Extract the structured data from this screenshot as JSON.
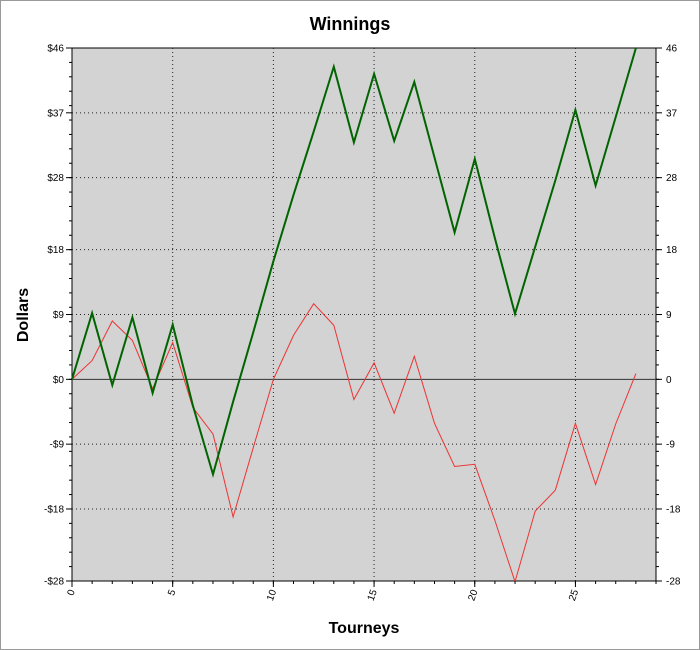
{
  "chart_data": {
    "type": "line",
    "title": "Winnings",
    "xlabel": "Tourneys",
    "ylabel": "Dollars",
    "x": [
      0,
      1,
      2,
      3,
      4,
      5,
      6,
      7,
      8,
      9,
      10,
      11,
      12,
      13,
      14,
      15,
      16,
      17,
      18,
      19,
      20,
      21,
      22,
      23,
      24,
      25,
      26,
      27,
      28
    ],
    "series": [
      {
        "color": "#006400",
        "values": [
          0,
          9.2,
          -0.8,
          8.6,
          -1.9,
          7.6,
          -3.6,
          -13.2,
          -3.1,
          6.5,
          16.4,
          25.6,
          34.4,
          43.4,
          32.9,
          42.4,
          33.1,
          41.3,
          30.8,
          20.4,
          30.6,
          19.6,
          9.1,
          18.4,
          27.6,
          37.4,
          26.9,
          36.4,
          46
        ]
      },
      {
        "color": "#ee3333",
        "values": [
          0,
          2.6,
          8.1,
          5.4,
          -1.3,
          5.1,
          -3.9,
          -7.6,
          -19.1,
          -9.5,
          0,
          6.1,
          10.5,
          7.5,
          -2.8,
          2.3,
          -4.7,
          3.2,
          -6.1,
          -12.1,
          -11.8,
          -19.6,
          -28.1,
          -18.3,
          -15.4,
          -6.1,
          -14.6,
          -6.2,
          0.8
        ]
      }
    ],
    "xlim": [
      0,
      29
    ],
    "ylim": [
      -28,
      46
    ],
    "x_ticks": [
      0,
      5,
      10,
      15,
      20,
      25
    ],
    "x_tick_labels": [
      "0",
      "5",
      "10",
      "15",
      "20",
      "25"
    ],
    "y_ticks": [
      -28,
      -18,
      -9,
      0,
      9,
      18,
      28,
      37,
      46
    ],
    "y_tick_labels_left": [
      "-$28",
      "-$18",
      "-$9",
      "$0",
      "$9",
      "$18",
      "$28",
      "$37",
      "$46"
    ],
    "y_tick_labels_right": [
      "-28",
      "-18",
      "-9",
      "0",
      "9",
      "18",
      "28",
      "37",
      "46"
    ],
    "grid": true,
    "plot_background": "#d3d3d3"
  }
}
